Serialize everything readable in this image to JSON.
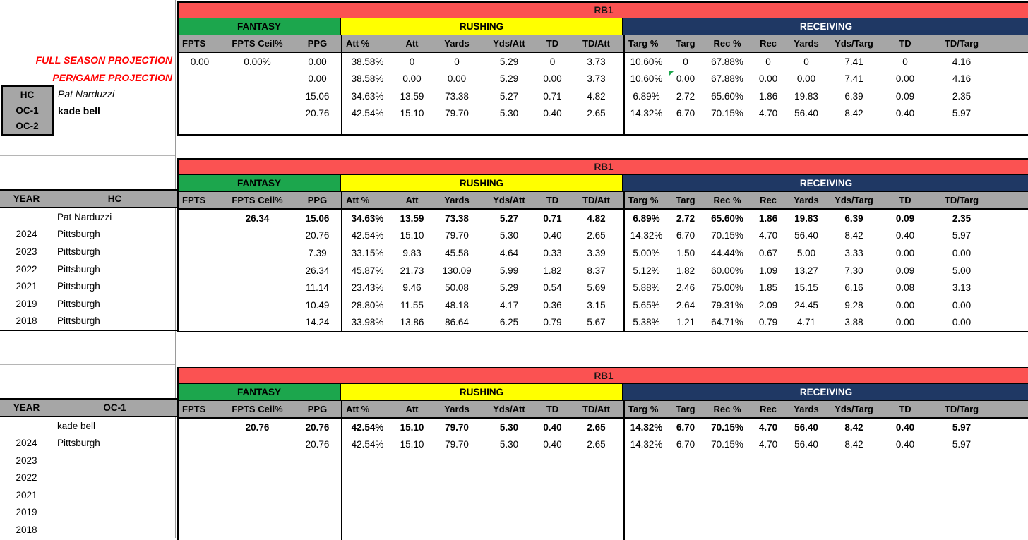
{
  "position": "RB1",
  "sections": {
    "fantasy": "FANTASY",
    "rushing": "RUSHING",
    "receiving": "RECEIVING"
  },
  "column_headers": [
    "FPTS",
    "FPTS Ceil%",
    "PPG",
    "Att %",
    "Att",
    "Yards",
    "Yds/Att",
    "TD",
    "TD/Att",
    "Targ %",
    "Targ",
    "Rec %",
    "Rec",
    "Yards",
    "Yds/Targ",
    "TD",
    "TD/Targ"
  ],
  "colors": {
    "red_banner": "#FB5252",
    "green_fantasy": "#1CA64D",
    "yellow_rushing": "#FFFF00",
    "navy_receiving": "#1F3864",
    "gray_header": "#A6A6A6",
    "projection_label_red": "#FF0000"
  },
  "projection_panel": {
    "row_labels": [
      "FULL SEASON PROJECTION",
      "PER/GAME PROJECTION"
    ],
    "coach_roles": [
      {
        "role": "HC",
        "name": "Pat Narduzzi"
      },
      {
        "role": "OC-1",
        "name": "kade bell"
      },
      {
        "role": "OC-2",
        "name": ""
      }
    ],
    "rows": [
      {
        "values": [
          "0.00",
          "0.00%",
          "0.00",
          "38.58%",
          "0",
          "0",
          "5.29",
          "0",
          "3.73",
          "10.60%",
          "0",
          "67.88%",
          "0",
          "0",
          "7.41",
          "0",
          "4.16"
        ],
        "bold": false
      },
      {
        "values": [
          "",
          "",
          "0.00",
          "38.58%",
          "0.00",
          "0.00",
          "5.29",
          "0.00",
          "3.73",
          "10.60%",
          "0.00",
          "67.88%",
          "0.00",
          "0.00",
          "7.41",
          "0.00",
          "4.16"
        ],
        "bold": false,
        "flag_col": 10
      },
      {
        "values": [
          "",
          "",
          "15.06",
          "34.63%",
          "13.59",
          "73.38",
          "5.27",
          "0.71",
          "4.82",
          "6.89%",
          "2.72",
          "65.60%",
          "1.86",
          "19.83",
          "6.39",
          "0.09",
          "2.35"
        ],
        "bold": false
      },
      {
        "values": [
          "",
          "",
          "20.76",
          "42.54%",
          "15.10",
          "79.70",
          "5.30",
          "0.40",
          "2.65",
          "14.32%",
          "6.70",
          "70.15%",
          "4.70",
          "56.40",
          "8.42",
          "0.40",
          "5.97"
        ],
        "bold": false
      }
    ]
  },
  "hc_history": {
    "year_header": "YEAR",
    "coach_header": "HC",
    "left_rows": [
      {
        "year": "",
        "name": "Pat Narduzzi"
      },
      {
        "year": "2024",
        "name": "Pittsburgh"
      },
      {
        "year": "2023",
        "name": "Pittsburgh"
      },
      {
        "year": "2022",
        "name": "Pittsburgh"
      },
      {
        "year": "2021",
        "name": "Pittsburgh"
      },
      {
        "year": "2019",
        "name": "Pittsburgh"
      },
      {
        "year": "2018",
        "name": "Pittsburgh"
      }
    ],
    "rows": [
      {
        "values": [
          "",
          "26.34",
          "15.06",
          "34.63%",
          "13.59",
          "73.38",
          "5.27",
          "0.71",
          "4.82",
          "6.89%",
          "2.72",
          "65.60%",
          "1.86",
          "19.83",
          "6.39",
          "0.09",
          "2.35"
        ],
        "bold": true
      },
      {
        "values": [
          "",
          "",
          "20.76",
          "42.54%",
          "15.10",
          "79.70",
          "5.30",
          "0.40",
          "2.65",
          "14.32%",
          "6.70",
          "70.15%",
          "4.70",
          "56.40",
          "8.42",
          "0.40",
          "5.97"
        ],
        "bold": false
      },
      {
        "values": [
          "",
          "",
          "7.39",
          "33.15%",
          "9.83",
          "45.58",
          "4.64",
          "0.33",
          "3.39",
          "5.00%",
          "1.50",
          "44.44%",
          "0.67",
          "5.00",
          "3.33",
          "0.00",
          "0.00"
        ],
        "bold": false
      },
      {
        "values": [
          "",
          "",
          "26.34",
          "45.87%",
          "21.73",
          "130.09",
          "5.99",
          "1.82",
          "8.37",
          "5.12%",
          "1.82",
          "60.00%",
          "1.09",
          "13.27",
          "7.30",
          "0.09",
          "5.00"
        ],
        "bold": false
      },
      {
        "values": [
          "",
          "",
          "11.14",
          "23.43%",
          "9.46",
          "50.08",
          "5.29",
          "0.54",
          "5.69",
          "5.88%",
          "2.46",
          "75.00%",
          "1.85",
          "15.15",
          "6.16",
          "0.08",
          "3.13"
        ],
        "bold": false
      },
      {
        "values": [
          "",
          "",
          "10.49",
          "28.80%",
          "11.55",
          "48.18",
          "4.17",
          "0.36",
          "3.15",
          "5.65%",
          "2.64",
          "79.31%",
          "2.09",
          "24.45",
          "9.28",
          "0.00",
          "0.00"
        ],
        "bold": false
      },
      {
        "values": [
          "",
          "",
          "14.24",
          "33.98%",
          "13.86",
          "86.64",
          "6.25",
          "0.79",
          "5.67",
          "5.38%",
          "1.21",
          "64.71%",
          "0.79",
          "4.71",
          "3.88",
          "0.00",
          "0.00"
        ],
        "bold": false
      }
    ]
  },
  "oc_history": {
    "year_header": "YEAR",
    "coach_header": "OC-1",
    "left_rows": [
      {
        "year": "",
        "name": "kade bell"
      },
      {
        "year": "2024",
        "name": "Pittsburgh"
      },
      {
        "year": "2023",
        "name": ""
      },
      {
        "year": "2022",
        "name": ""
      },
      {
        "year": "2021",
        "name": ""
      },
      {
        "year": "2019",
        "name": ""
      },
      {
        "year": "2018",
        "name": ""
      }
    ],
    "rows": [
      {
        "values": [
          "",
          "20.76",
          "20.76",
          "42.54%",
          "15.10",
          "79.70",
          "5.30",
          "0.40",
          "2.65",
          "14.32%",
          "6.70",
          "70.15%",
          "4.70",
          "56.40",
          "8.42",
          "0.40",
          "5.97"
        ],
        "bold": true
      },
      {
        "values": [
          "",
          "",
          "20.76",
          "42.54%",
          "15.10",
          "79.70",
          "5.30",
          "0.40",
          "2.65",
          "14.32%",
          "6.70",
          "70.15%",
          "4.70",
          "56.40",
          "8.42",
          "0.40",
          "5.97"
        ],
        "bold": false
      },
      {
        "values": [],
        "bold": false
      },
      {
        "values": [],
        "bold": false
      },
      {
        "values": [],
        "bold": false
      },
      {
        "values": [],
        "bold": false
      },
      {
        "values": [],
        "bold": false
      }
    ]
  }
}
